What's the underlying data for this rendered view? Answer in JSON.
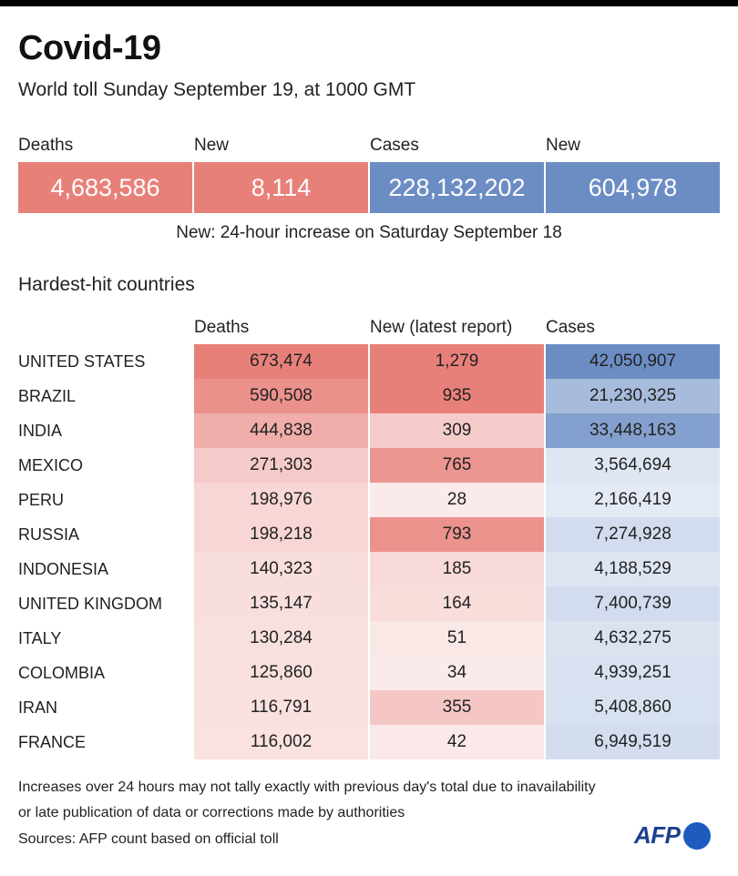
{
  "header": {
    "title": "Covid-19",
    "subtitle": "World toll Sunday September 19, at 1000 GMT"
  },
  "summary": {
    "items": [
      {
        "label": "Deaths",
        "value": "4,683,586",
        "color": "#e8807a"
      },
      {
        "label": "New",
        "value": "8,114",
        "color": "#e8807a"
      },
      {
        "label": "Cases",
        "value": "228,132,202",
        "color": "#6c8dc4"
      },
      {
        "label": "New",
        "value": "604,978",
        "color": "#6c8dc4"
      }
    ],
    "note": "New: 24-hour increase on Saturday September 18"
  },
  "colors": {
    "red_base": "#e8807a",
    "blue_base": "#6c8dc4",
    "page_background": "#ffffff",
    "text": "#222222"
  },
  "chart_data": {
    "type": "table",
    "title": "Hardest-hit countries",
    "columns": [
      "Deaths",
      "New (latest report)",
      "Cases"
    ],
    "rows": [
      {
        "country": "UNITED STATES",
        "deaths": "673,474",
        "new": "1,279",
        "cases": "42,050,907",
        "deaths_n": 673474,
        "new_n": 1279,
        "cases_n": 42050907
      },
      {
        "country": "BRAZIL",
        "deaths": "590,508",
        "new": "935",
        "cases": "21,230,325",
        "deaths_n": 590508,
        "new_n": 935,
        "cases_n": 21230325
      },
      {
        "country": "INDIA",
        "deaths": "444,838",
        "new": "309",
        "cases": "33,448,163",
        "deaths_n": 444838,
        "new_n": 309,
        "cases_n": 33448163
      },
      {
        "country": "MEXICO",
        "deaths": "271,303",
        "new": "765",
        "cases": "3,564,694",
        "deaths_n": 271303,
        "new_n": 765,
        "cases_n": 3564694
      },
      {
        "country": "PERU",
        "deaths": "198,976",
        "new": "28",
        "cases": "2,166,419",
        "deaths_n": 198976,
        "new_n": 28,
        "cases_n": 2166419
      },
      {
        "country": "RUSSIA",
        "deaths": "198,218",
        "new": "793",
        "cases": "7,274,928",
        "deaths_n": 198218,
        "new_n": 793,
        "cases_n": 7274928
      },
      {
        "country": "INDONESIA",
        "deaths": "140,323",
        "new": "185",
        "cases": "4,188,529",
        "deaths_n": 140323,
        "new_n": 185,
        "cases_n": 4188529
      },
      {
        "country": "UNITED KINGDOM",
        "deaths": "135,147",
        "new": "164",
        "cases": "7,400,739",
        "deaths_n": 135147,
        "new_n": 164,
        "cases_n": 7400739
      },
      {
        "country": "ITALY",
        "deaths": "130,284",
        "new": "51",
        "cases": "4,632,275",
        "deaths_n": 130284,
        "new_n": 51,
        "cases_n": 4632275
      },
      {
        "country": "COLOMBIA",
        "deaths": "125,860",
        "new": "34",
        "cases": "4,939,251",
        "deaths_n": 125860,
        "new_n": 34,
        "cases_n": 4939251
      },
      {
        "country": "IRAN",
        "deaths": "116,791",
        "new": "355",
        "cases": "5,408,860",
        "deaths_n": 116791,
        "new_n": 355,
        "cases_n": 5408860
      },
      {
        "country": "FRANCE",
        "deaths": "116,002",
        "new": "42",
        "cases": "6,949,519",
        "deaths_n": 116002,
        "new_n": 42,
        "cases_n": 6949519
      }
    ]
  },
  "footer": {
    "note_line1": "Increases over 24 hours may not tally exactly with previous day's total due to inavailability",
    "note_line2": "or late publication of data or corrections made by authorities",
    "sources": "Sources: AFP count based on official toll",
    "logo_text": "AFP"
  }
}
